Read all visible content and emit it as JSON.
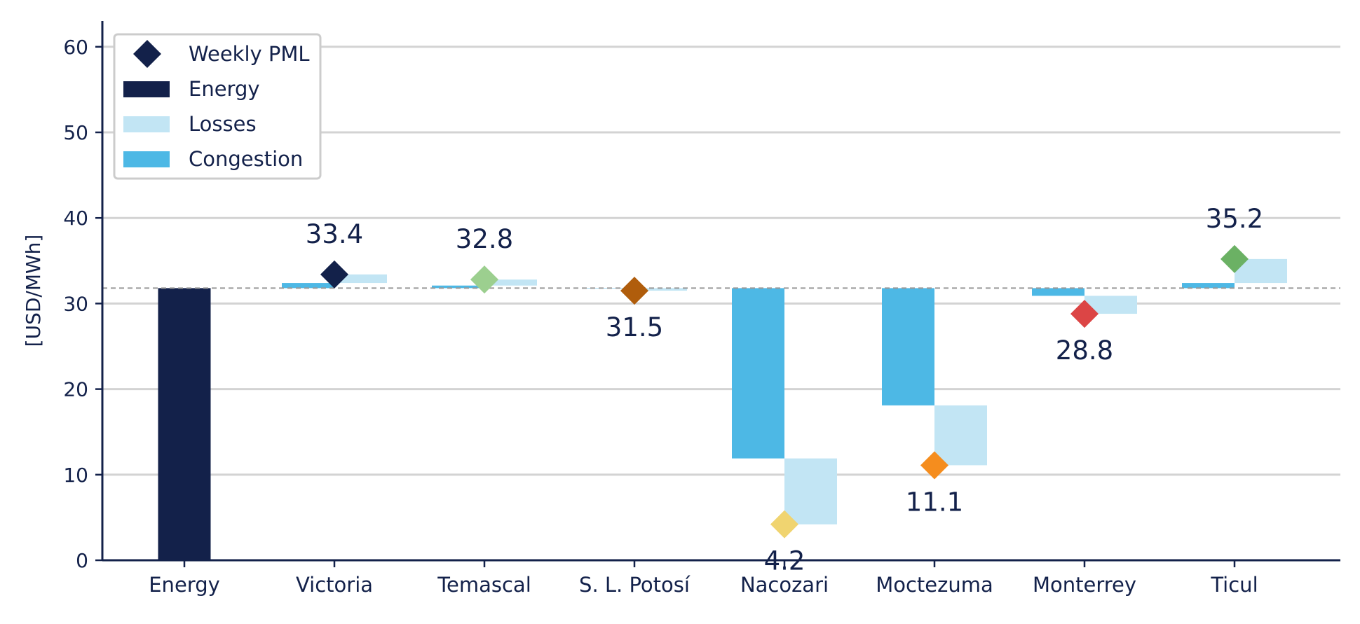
{
  "chart_data": {
    "type": "bar",
    "ylabel": "[USD/MWh]",
    "ylim": [
      0,
      63
    ],
    "yticks": [
      0,
      10,
      20,
      30,
      40,
      50,
      60
    ],
    "grid": true,
    "legend_position": "top-left",
    "legend": [
      {
        "key": "pml",
        "label": "Weekly PML",
        "marker": "diamond",
        "color": "#13214a"
      },
      {
        "key": "energy",
        "label": "Energy",
        "marker": "bar",
        "color": "#13214a"
      },
      {
        "key": "losses",
        "label": "Losses",
        "marker": "bar",
        "color": "#c2e5f4"
      },
      {
        "key": "congestion",
        "label": "Congestion",
        "marker": "bar",
        "color": "#4db8e5"
      }
    ],
    "reference_line": {
      "value": 31.8,
      "style": "dashed",
      "color": "#999999"
    },
    "categories": [
      "Energy",
      "Victoria",
      "Temascal",
      "S. L. Potosí",
      "Nacozari",
      "Moctezuma",
      "Monterrey",
      "Ticul"
    ],
    "energy": 31.8,
    "nodes": [
      {
        "name": "Victoria",
        "congestion": 0.6,
        "losses": 1.0,
        "pml": 33.4,
        "pml_label": "33.4",
        "pml_color": "#13214a",
        "label_position": "above"
      },
      {
        "name": "Temascal",
        "congestion": 0.3,
        "losses": 0.7,
        "pml": 32.8,
        "pml_label": "32.8",
        "pml_color": "#9ccf8f",
        "label_position": "above"
      },
      {
        "name": "S. L. Potosí",
        "congestion": 0.0,
        "losses": -0.3,
        "pml": 31.5,
        "pml_label": "31.5",
        "pml_color": "#b05d0c",
        "label_position": "below"
      },
      {
        "name": "Nacozari",
        "congestion": -19.9,
        "losses": -7.7,
        "pml": 4.2,
        "pml_label": "4.2",
        "pml_color": "#f0d470",
        "label_position": "below"
      },
      {
        "name": "Moctezuma",
        "congestion": -13.7,
        "losses": -7.0,
        "pml": 11.1,
        "pml_label": "11.1",
        "pml_color": "#f58d1e",
        "label_position": "below"
      },
      {
        "name": "Monterrey",
        "congestion": -0.9,
        "losses": -2.1,
        "pml": 28.8,
        "pml_label": "28.8",
        "pml_color": "#dc4545",
        "label_position": "below"
      },
      {
        "name": "Ticul",
        "congestion": 0.6,
        "losses": 2.8,
        "pml": 35.2,
        "pml_label": "35.2",
        "pml_color": "#6bb164",
        "label_position": "above"
      }
    ],
    "colors": {
      "axis": "#13214a",
      "grid": "#d3d3d3",
      "energy": "#13214a",
      "losses": "#c2e5f4",
      "congestion": "#4db8e5",
      "legend_border": "#cccccc"
    }
  }
}
